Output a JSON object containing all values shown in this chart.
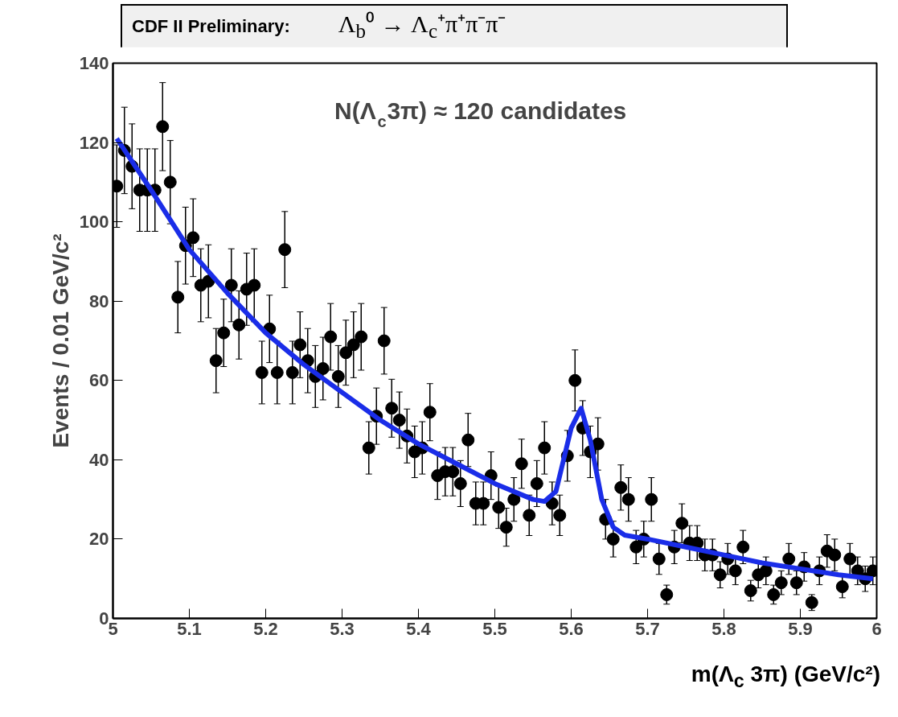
{
  "chart_data": {
    "type": "scatter",
    "title": "CDF II Preliminary:",
    "subtitle": "Λ$_{b}$⁰ → Λ$_{c}$⁺π⁺π⁻π⁻",
    "xlabel": "m(Λ$_{c}$ 3π) (GeV/c²)",
    "ylabel": "Events / 0.01 GeV/c²",
    "annotations": [
      "N(Λ$_{c}$3π) ≈ 120 candidates"
    ],
    "xlim": [
      5,
      6
    ],
    "xticks": [
      5,
      5.1,
      5.2,
      5.3,
      5.4,
      5.5,
      5.6,
      5.7,
      5.8,
      5.9,
      6
    ],
    "ylim": [
      0,
      140
    ],
    "yticks": [
      0,
      20,
      40,
      60,
      80,
      100,
      120,
      140
    ],
    "grid": false,
    "series": [
      {
        "marker": "circle",
        "color": "#000000",
        "x": [
          5.005,
          5.015,
          5.025,
          5.035,
          5.045,
          5.055,
          5.065,
          5.075,
          5.085,
          5.095,
          5.105,
          5.115,
          5.125,
          5.135,
          5.145,
          5.155,
          5.165,
          5.175,
          5.185,
          5.195,
          5.205,
          5.215,
          5.225,
          5.235,
          5.245,
          5.255,
          5.265,
          5.275,
          5.285,
          5.295,
          5.305,
          5.315,
          5.325,
          5.335,
          5.345,
          5.355,
          5.365,
          5.375,
          5.385,
          5.395,
          5.405,
          5.415,
          5.425,
          5.435,
          5.445,
          5.455,
          5.465,
          5.475,
          5.485,
          5.495,
          5.505,
          5.515,
          5.525,
          5.535,
          5.545,
          5.555,
          5.565,
          5.575,
          5.585,
          5.595,
          5.605,
          5.615,
          5.625,
          5.635,
          5.645,
          5.655,
          5.665,
          5.675,
          5.685,
          5.695,
          5.705,
          5.715,
          5.725,
          5.735,
          5.745,
          5.755,
          5.765,
          5.775,
          5.785,
          5.795,
          5.805,
          5.815,
          5.825,
          5.835,
          5.845,
          5.855,
          5.865,
          5.875,
          5.885,
          5.895,
          5.905,
          5.915,
          5.925,
          5.935,
          5.945,
          5.955,
          5.965,
          5.975,
          5.985,
          5.995
        ],
        "values": [
          109,
          118,
          114,
          108,
          108,
          108,
          124,
          110,
          81,
          94,
          96,
          84,
          85,
          65,
          72,
          84,
          74,
          83,
          84,
          62,
          73,
          62,
          93,
          62,
          69,
          65,
          61,
          63,
          71,
          61,
          67,
          69,
          71,
          43,
          51,
          70,
          53,
          50,
          46,
          42,
          43,
          52,
          36,
          37,
          37,
          34,
          45,
          29,
          29,
          36,
          28,
          23,
          30,
          39,
          26,
          34,
          43,
          29,
          26,
          41,
          60,
          48,
          42,
          44,
          25,
          20,
          33,
          30,
          18,
          20,
          30,
          15,
          6,
          18,
          24,
          19,
          19,
          16,
          16,
          11,
          15,
          12,
          18,
          7,
          11,
          12,
          6,
          9,
          15,
          9,
          13,
          4,
          12,
          17,
          16,
          8,
          15,
          12,
          10,
          12
        ],
        "errors": [
          10.4,
          10.9,
          10.7,
          10.4,
          10.4,
          10.4,
          11.1,
          10.5,
          9,
          9.7,
          9.8,
          9.2,
          9.2,
          8.1,
          8.5,
          9.2,
          8.6,
          9.1,
          9.2,
          7.9,
          8.5,
          7.9,
          9.6,
          7.9,
          8.3,
          8.1,
          7.8,
          7.9,
          8.4,
          7.8,
          8.2,
          8.3,
          8.4,
          6.6,
          7.1,
          8.4,
          7.3,
          7.1,
          6.8,
          6.5,
          6.6,
          7.2,
          6,
          6.1,
          6.1,
          5.8,
          6.7,
          5.4,
          5.4,
          6,
          5.3,
          4.8,
          5.5,
          6.2,
          5.1,
          5.8,
          6.6,
          5.4,
          5.1,
          6.4,
          7.7,
          6.9,
          6.5,
          6.6,
          5,
          4.5,
          5.7,
          5.5,
          4.2,
          4.5,
          5.5,
          3.9,
          2.4,
          4.2,
          4.9,
          4.4,
          4.4,
          4,
          4,
          3.3,
          3.9,
          3.5,
          4.2,
          2.6,
          3.3,
          3.5,
          2.4,
          3,
          3.9,
          3,
          3.6,
          2,
          3.5,
          4.1,
          4,
          2.8,
          3.9,
          3.5,
          3.2,
          3.5
        ]
      },
      {
        "type": "line",
        "color": "#1a2de8",
        "x": [
          5.005,
          5.05,
          5.1,
          5.15,
          5.2,
          5.25,
          5.3,
          5.35,
          5.4,
          5.45,
          5.5,
          5.55,
          5.565,
          5.58,
          5.59,
          5.6,
          5.613,
          5.625,
          5.64,
          5.655,
          5.67,
          5.7,
          5.75,
          5.8,
          5.85,
          5.9,
          5.95,
          5.995
        ],
        "values": [
          121,
          108,
          93,
          82,
          72,
          64,
          57,
          50,
          44,
          39,
          34,
          30,
          29.5,
          32,
          40,
          48,
          53,
          45,
          30,
          23,
          21,
          20,
          18,
          16,
          14,
          12.5,
          11,
          10
        ]
      }
    ]
  }
}
